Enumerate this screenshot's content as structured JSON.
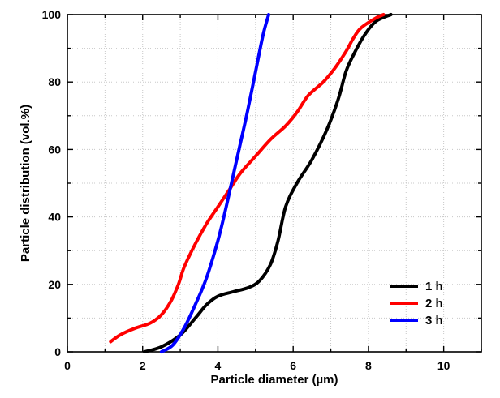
{
  "chart_data": {
    "type": "line",
    "title": "",
    "xlabel": "Particle diameter (µm)",
    "ylabel": "Particle distribution (vol.%)",
    "xlim": [
      0,
      11
    ],
    "ylim": [
      0,
      100
    ],
    "xticks": [
      0,
      2,
      4,
      6,
      8,
      10
    ],
    "yticks": [
      0,
      20,
      40,
      60,
      80,
      100
    ],
    "grid": true,
    "legend_position": "bottom-right",
    "series": [
      {
        "name": "1 h",
        "color": "#000000",
        "points": [
          [
            2.05,
            0
          ],
          [
            2.5,
            1.5
          ],
          [
            3.0,
            5
          ],
          [
            3.4,
            10
          ],
          [
            3.7,
            14
          ],
          [
            4.0,
            16.5
          ],
          [
            4.4,
            17.8
          ],
          [
            4.8,
            19
          ],
          [
            5.1,
            21
          ],
          [
            5.4,
            26
          ],
          [
            5.6,
            33
          ],
          [
            5.8,
            43
          ],
          [
            6.1,
            50
          ],
          [
            6.5,
            57
          ],
          [
            6.9,
            66
          ],
          [
            7.2,
            75
          ],
          [
            7.4,
            83
          ],
          [
            7.6,
            88
          ],
          [
            7.9,
            94
          ],
          [
            8.2,
            98
          ],
          [
            8.6,
            100
          ]
        ]
      },
      {
        "name": "2 h",
        "color": "#ff0000",
        "points": [
          [
            1.15,
            3
          ],
          [
            1.4,
            5
          ],
          [
            1.8,
            7
          ],
          [
            2.2,
            8.5
          ],
          [
            2.5,
            11
          ],
          [
            2.75,
            15
          ],
          [
            2.95,
            20
          ],
          [
            3.1,
            25
          ],
          [
            3.4,
            32
          ],
          [
            3.7,
            38
          ],
          [
            4.0,
            43
          ],
          [
            4.3,
            48
          ],
          [
            4.6,
            53
          ],
          [
            5.0,
            58
          ],
          [
            5.4,
            63
          ],
          [
            5.8,
            67
          ],
          [
            6.1,
            71
          ],
          [
            6.4,
            76
          ],
          [
            6.8,
            80
          ],
          [
            7.1,
            84
          ],
          [
            7.4,
            89
          ],
          [
            7.6,
            93
          ],
          [
            7.8,
            96
          ],
          [
            8.2,
            99
          ],
          [
            8.4,
            100
          ]
        ]
      },
      {
        "name": "3 h",
        "color": "#0000ff",
        "points": [
          [
            2.5,
            0
          ],
          [
            2.8,
            2
          ],
          [
            3.1,
            7
          ],
          [
            3.4,
            14
          ],
          [
            3.7,
            22
          ],
          [
            4.0,
            33
          ],
          [
            4.2,
            42
          ],
          [
            4.4,
            52
          ],
          [
            4.6,
            62
          ],
          [
            4.8,
            72
          ],
          [
            5.0,
            83
          ],
          [
            5.2,
            94
          ],
          [
            5.35,
            100
          ]
        ]
      }
    ]
  }
}
